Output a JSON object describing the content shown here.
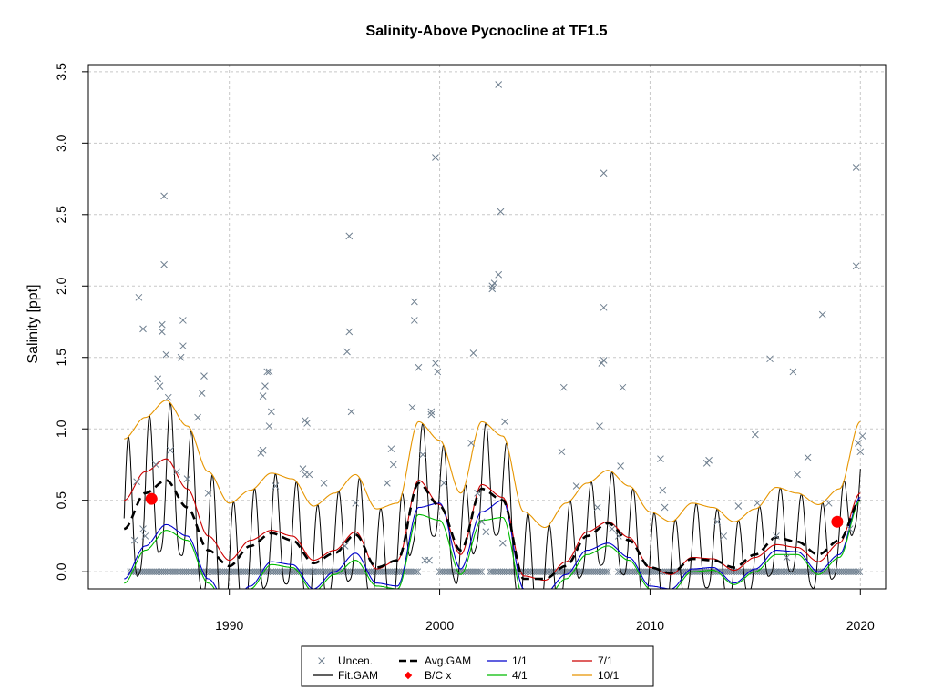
{
  "chart_data": {
    "type": "line",
    "title": "Salinity-Above Pycnocline at TF1.5",
    "xlabel": "",
    "ylabel": "Salinity [ppt]",
    "xlim": [
      1983.3,
      2021.2
    ],
    "ylim": [
      -0.12,
      3.55
    ],
    "xticks": [
      1990,
      2000,
      2010,
      2020
    ],
    "yticks": [
      0.0,
      0.5,
      1.0,
      1.5,
      2.0,
      2.5,
      3.0,
      3.5
    ],
    "xtick_labels": [
      "1990",
      "2000",
      "2010",
      "2020"
    ],
    "ytick_labels": [
      "0.0",
      "0.5",
      "1.0",
      "1.5",
      "2.0",
      "2.5",
      "3.0",
      "3.5"
    ],
    "grid": true,
    "legend_position": "bottom-center",
    "legend": [
      {
        "label": "Uncen.",
        "symbol": "x",
        "color": "#708090"
      },
      {
        "label": "Avg.GAM",
        "symbol": "dash",
        "color": "#000000"
      },
      {
        "label": "1/1",
        "symbol": "line",
        "color": "#0000cc"
      },
      {
        "label": "7/1",
        "symbol": "line",
        "color": "#cc0000"
      },
      {
        "label": "Fit.GAM",
        "symbol": "line",
        "color": "#000000"
      },
      {
        "label": "B/C x",
        "symbol": "dot",
        "color": "#ff0000"
      },
      {
        "label": "4/1",
        "symbol": "line",
        "color": "#00bb00"
      },
      {
        "label": "10/1",
        "symbol": "line",
        "color": "#e69500"
      }
    ],
    "colors": {
      "uncen": "#708090",
      "avg": "#000000",
      "fit": "#000000",
      "s1_1": "#0000cc",
      "s4_1": "#00bb00",
      "s7_1": "#cc0000",
      "s10_1": "#e69500",
      "bc": "#ff0000"
    },
    "bc_points": [
      {
        "x": 1986.3,
        "y": 0.51
      },
      {
        "x": 2018.9,
        "y": 0.35
      }
    ],
    "avg_gam": {
      "x": [
        1985.0,
        1986.0,
        1987.0,
        1988.0,
        1989.0,
        1990.0,
        1991.0,
        1992.0,
        1993.0,
        1994.0,
        1995.0,
        1996.0,
        1997.0,
        1998.0,
        1999.0,
        2000.0,
        2001.0,
        2002.0,
        2003.0,
        2004.0,
        2005.0,
        2006.0,
        2007.0,
        2008.0,
        2009.0,
        2010.0,
        2011.0,
        2012.0,
        2013.0,
        2014.0,
        2015.0,
        2016.0,
        2017.0,
        2018.0,
        2019.0,
        2020.0
      ],
      "y": [
        0.3,
        0.55,
        0.64,
        0.45,
        0.15,
        0.04,
        0.18,
        0.27,
        0.22,
        0.06,
        0.13,
        0.26,
        0.03,
        0.08,
        0.62,
        0.46,
        0.15,
        0.58,
        0.5,
        -0.05,
        -0.05,
        0.04,
        0.25,
        0.34,
        0.22,
        0.03,
        -0.01,
        0.09,
        0.08,
        0.03,
        0.12,
        0.24,
        0.21,
        0.12,
        0.22,
        0.5
      ]
    },
    "seasonal": {
      "x": [
        1985.0,
        1986.0,
        1987.0,
        1988.0,
        1989.0,
        1990.0,
        1991.0,
        1992.0,
        1993.0,
        1994.0,
        1995.0,
        1996.0,
        1997.0,
        1998.0,
        1999.0,
        2000.0,
        2001.0,
        2002.0,
        2003.0,
        2004.0,
        2005.0,
        2006.0,
        2007.0,
        2008.0,
        2009.0,
        2010.0,
        2011.0,
        2012.0,
        2013.0,
        2014.0,
        2015.0,
        2016.0,
        2017.0,
        2018.0,
        2019.0,
        2020.0
      ],
      "s10_1": [
        0.93,
        1.08,
        1.2,
        1.02,
        0.7,
        0.48,
        0.57,
        0.69,
        0.65,
        0.46,
        0.55,
        0.68,
        0.44,
        0.48,
        1.05,
        0.92,
        0.55,
        1.05,
        0.95,
        0.42,
        0.31,
        0.48,
        0.62,
        0.71,
        0.6,
        0.42,
        0.35,
        0.48,
        0.45,
        0.35,
        0.44,
        0.59,
        0.55,
        0.47,
        0.58,
        1.05
      ],
      "s7_1": [
        0.5,
        0.7,
        0.79,
        0.58,
        0.25,
        0.08,
        0.22,
        0.29,
        0.25,
        0.08,
        0.15,
        0.28,
        0.02,
        0.08,
        0.64,
        0.47,
        0.12,
        0.61,
        0.52,
        -0.03,
        -0.06,
        0.07,
        0.28,
        0.35,
        0.24,
        0.03,
        -0.02,
        0.1,
        0.09,
        0.01,
        0.1,
        0.19,
        0.17,
        0.07,
        0.2,
        0.55
      ],
      "s1_1": [
        -0.05,
        0.18,
        0.33,
        0.25,
        -0.05,
        -0.25,
        -0.1,
        0.07,
        0.05,
        -0.12,
        0.0,
        0.13,
        -0.08,
        -0.1,
        0.45,
        0.48,
        0.02,
        0.42,
        0.5,
        -0.12,
        -0.15,
        -0.02,
        0.15,
        0.2,
        0.1,
        -0.1,
        -0.12,
        0.02,
        0.03,
        -0.08,
        0.02,
        0.15,
        0.14,
        0.0,
        0.12,
        0.52
      ],
      "s4_1": [
        -0.08,
        0.15,
        0.29,
        0.22,
        -0.08,
        -0.27,
        -0.12,
        0.05,
        0.03,
        -0.14,
        -0.02,
        0.08,
        -0.1,
        -0.12,
        0.4,
        0.36,
        -0.02,
        0.36,
        0.38,
        -0.18,
        -0.2,
        -0.05,
        0.12,
        0.18,
        0.08,
        -0.12,
        -0.14,
        0.0,
        0.01,
        -0.09,
        0.0,
        0.12,
        0.12,
        -0.02,
        0.1,
        0.5
      ]
    },
    "uncen_points": [
      [
        1985.5,
        0.22
      ],
      [
        1985.6,
        0.63
      ],
      [
        1985.7,
        1.92
      ],
      [
        1985.9,
        1.7
      ],
      [
        1985.9,
        0.3
      ],
      [
        1986.0,
        0.25
      ],
      [
        1986.3,
        0.5
      ],
      [
        1986.5,
        0.75
      ],
      [
        1986.6,
        1.35
      ],
      [
        1986.7,
        1.3
      ],
      [
        1986.8,
        1.68
      ],
      [
        1986.8,
        1.73
      ],
      [
        1986.9,
        2.63
      ],
      [
        1986.9,
        2.15
      ],
      [
        1987.0,
        1.52
      ],
      [
        1987.1,
        1.22
      ],
      [
        1987.2,
        0.85
      ],
      [
        1987.5,
        0.7
      ],
      [
        1987.7,
        1.5
      ],
      [
        1987.8,
        1.58
      ],
      [
        1987.8,
        1.76
      ],
      [
        1988.0,
        0.65
      ],
      [
        1988.5,
        1.08
      ],
      [
        1988.7,
        1.25
      ],
      [
        1988.8,
        1.37
      ],
      [
        1989.0,
        0.55
      ],
      [
        1991.5,
        0.83
      ],
      [
        1991.6,
        0.85
      ],
      [
        1991.6,
        1.23
      ],
      [
        1991.7,
        1.3
      ],
      [
        1991.8,
        1.4
      ],
      [
        1991.9,
        1.4
      ],
      [
        1991.9,
        1.02
      ],
      [
        1992.0,
        1.12
      ],
      [
        1992.2,
        0.6
      ],
      [
        1993.5,
        0.72
      ],
      [
        1993.6,
        0.68
      ],
      [
        1993.6,
        1.06
      ],
      [
        1993.7,
        1.04
      ],
      [
        1993.8,
        0.68
      ],
      [
        1994.5,
        0.62
      ],
      [
        1995.5,
        0.18
      ],
      [
        1995.6,
        1.54
      ],
      [
        1995.7,
        2.35
      ],
      [
        1995.7,
        1.68
      ],
      [
        1995.8,
        1.12
      ],
      [
        1996.0,
        0.48
      ],
      [
        1997.5,
        0.62
      ],
      [
        1997.7,
        0.86
      ],
      [
        1997.8,
        0.75
      ],
      [
        1998.7,
        1.15
      ],
      [
        1998.8,
        1.89
      ],
      [
        1998.8,
        1.76
      ],
      [
        1999.0,
        1.43
      ],
      [
        1999.2,
        0.82
      ],
      [
        1999.3,
        0.08
      ],
      [
        1999.5,
        0.08
      ],
      [
        1999.6,
        1.1
      ],
      [
        1999.6,
        1.12
      ],
      [
        1999.8,
        2.9
      ],
      [
        1999.8,
        1.46
      ],
      [
        1999.9,
        1.4
      ],
      [
        2000.2,
        0.62
      ],
      [
        2001.5,
        0.9
      ],
      [
        2001.6,
        1.53
      ],
      [
        2001.8,
        0.55
      ],
      [
        2002.0,
        0.35
      ],
      [
        2002.2,
        0.28
      ],
      [
        2002.5,
        2.0
      ],
      [
        2002.5,
        1.98
      ],
      [
        2002.6,
        2.02
      ],
      [
        2002.8,
        3.41
      ],
      [
        2002.8,
        2.08
      ],
      [
        2002.9,
        2.52
      ],
      [
        2003.0,
        0.2
      ],
      [
        2003.1,
        1.05
      ],
      [
        2005.8,
        0.84
      ],
      [
        2005.9,
        1.29
      ],
      [
        2006.5,
        0.6
      ],
      [
        2007.5,
        0.45
      ],
      [
        2007.6,
        1.02
      ],
      [
        2007.7,
        1.46
      ],
      [
        2007.8,
        1.48
      ],
      [
        2007.8,
        1.85
      ],
      [
        2007.8,
        2.79
      ],
      [
        2008.2,
        0.3
      ],
      [
        2008.5,
        0.25
      ],
      [
        2008.6,
        0.74
      ],
      [
        2008.7,
        1.29
      ],
      [
        2010.5,
        0.79
      ],
      [
        2010.6,
        0.57
      ],
      [
        2010.7,
        0.45
      ],
      [
        2012.7,
        0.76
      ],
      [
        2012.8,
        0.78
      ],
      [
        2013.2,
        0.35
      ],
      [
        2013.5,
        0.25
      ],
      [
        2014.2,
        0.46
      ],
      [
        2015.0,
        0.96
      ],
      [
        2015.1,
        0.48
      ],
      [
        2015.7,
        1.49
      ],
      [
        2016.0,
        0.25
      ],
      [
        2016.5,
        0.1
      ],
      [
        2016.8,
        1.4
      ],
      [
        2017.0,
        0.68
      ],
      [
        2017.5,
        0.8
      ],
      [
        2018.2,
        1.8
      ],
      [
        2018.5,
        0.48
      ],
      [
        2019.0,
        0.35
      ],
      [
        2019.5,
        0.3
      ],
      [
        2019.8,
        2.83
      ],
      [
        2019.8,
        2.14
      ],
      [
        2019.9,
        0.9
      ],
      [
        2020.0,
        0.84
      ],
      [
        2020.1,
        0.95
      ]
    ],
    "zero_point_ranges": [
      [
        1985.3,
        1989.0
      ],
      [
        1989.1,
        1994.0
      ],
      [
        1994.0,
        1999.0
      ],
      [
        2000.0,
        2002.0
      ],
      [
        2002.4,
        2008.0
      ],
      [
        2008.5,
        2016.0
      ],
      [
        2016.0,
        2020.0
      ]
    ]
  }
}
